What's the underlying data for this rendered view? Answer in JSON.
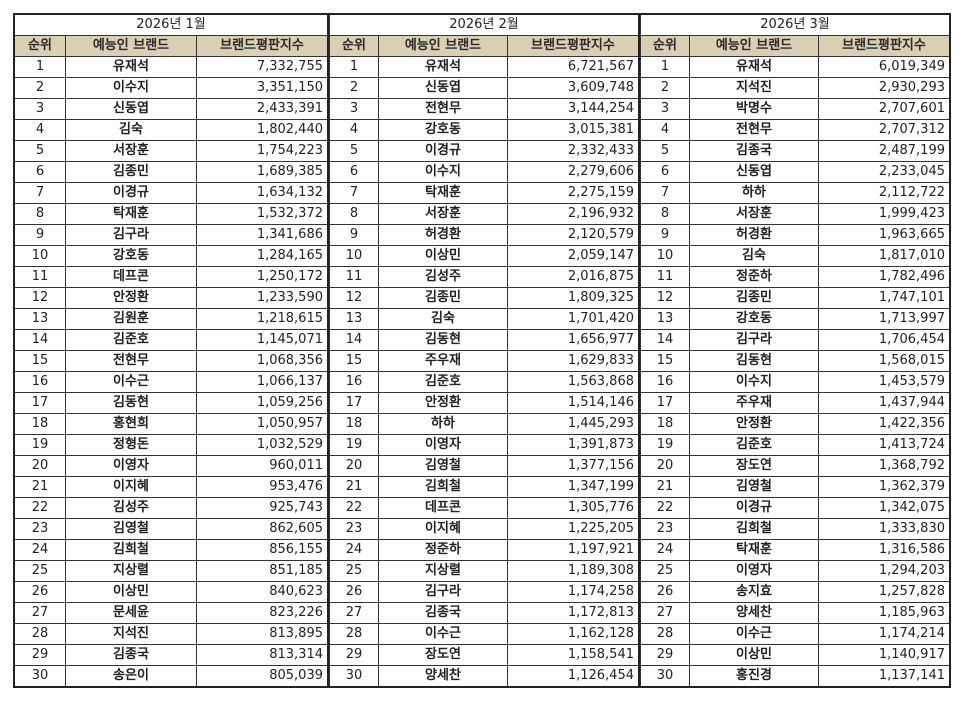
{
  "headers": {
    "rank": "순위",
    "brand": "예능인 브랜드",
    "score": "브랜드평판지수"
  },
  "months": [
    {
      "title": "2026년 1월",
      "rows": [
        {
          "rank": "1",
          "name": "유재석",
          "score": "7,332,755"
        },
        {
          "rank": "2",
          "name": "이수지",
          "score": "3,351,150"
        },
        {
          "rank": "3",
          "name": "신동엽",
          "score": "2,433,391"
        },
        {
          "rank": "4",
          "name": "김숙",
          "score": "1,802,440"
        },
        {
          "rank": "5",
          "name": "서장훈",
          "score": "1,754,223"
        },
        {
          "rank": "6",
          "name": "김종민",
          "score": "1,689,385"
        },
        {
          "rank": "7",
          "name": "이경규",
          "score": "1,634,132"
        },
        {
          "rank": "8",
          "name": "탁재훈",
          "score": "1,532,372"
        },
        {
          "rank": "9",
          "name": "김구라",
          "score": "1,341,686"
        },
        {
          "rank": "10",
          "name": "강호동",
          "score": "1,284,165"
        },
        {
          "rank": "11",
          "name": "데프콘",
          "score": "1,250,172"
        },
        {
          "rank": "12",
          "name": "안정환",
          "score": "1,233,590"
        },
        {
          "rank": "13",
          "name": "김원훈",
          "score": "1,218,615"
        },
        {
          "rank": "14",
          "name": "김준호",
          "score": "1,145,071"
        },
        {
          "rank": "15",
          "name": "전현무",
          "score": "1,068,356"
        },
        {
          "rank": "16",
          "name": "이수근",
          "score": "1,066,137"
        },
        {
          "rank": "17",
          "name": "김동현",
          "score": "1,059,256"
        },
        {
          "rank": "18",
          "name": "홍현희",
          "score": "1,050,957"
        },
        {
          "rank": "19",
          "name": "정형돈",
          "score": "1,032,529"
        },
        {
          "rank": "20",
          "name": "이영자",
          "score": "960,011"
        },
        {
          "rank": "21",
          "name": "이지혜",
          "score": "953,476"
        },
        {
          "rank": "22",
          "name": "김성주",
          "score": "925,743"
        },
        {
          "rank": "23",
          "name": "김영철",
          "score": "862,605"
        },
        {
          "rank": "24",
          "name": "김희철",
          "score": "856,155"
        },
        {
          "rank": "25",
          "name": "지상렬",
          "score": "851,185"
        },
        {
          "rank": "26",
          "name": "이상민",
          "score": "840,623"
        },
        {
          "rank": "27",
          "name": "문세윤",
          "score": "823,226"
        },
        {
          "rank": "28",
          "name": "지석진",
          "score": "813,895"
        },
        {
          "rank": "29",
          "name": "김종국",
          "score": "813,314"
        },
        {
          "rank": "30",
          "name": "송은이",
          "score": "805,039"
        }
      ]
    },
    {
      "title": "2026년 2월",
      "rows": [
        {
          "rank": "1",
          "name": "유재석",
          "score": "6,721,567"
        },
        {
          "rank": "2",
          "name": "신동엽",
          "score": "3,609,748"
        },
        {
          "rank": "3",
          "name": "전현무",
          "score": "3,144,254"
        },
        {
          "rank": "4",
          "name": "강호동",
          "score": "3,015,381"
        },
        {
          "rank": "5",
          "name": "이경규",
          "score": "2,332,433"
        },
        {
          "rank": "6",
          "name": "이수지",
          "score": "2,279,606"
        },
        {
          "rank": "7",
          "name": "탁재훈",
          "score": "2,275,159"
        },
        {
          "rank": "8",
          "name": "서장훈",
          "score": "2,196,932"
        },
        {
          "rank": "9",
          "name": "허경환",
          "score": "2,120,579"
        },
        {
          "rank": "10",
          "name": "이상민",
          "score": "2,059,147"
        },
        {
          "rank": "11",
          "name": "김성주",
          "score": "2,016,875"
        },
        {
          "rank": "12",
          "name": "김종민",
          "score": "1,809,325"
        },
        {
          "rank": "13",
          "name": "김숙",
          "score": "1,701,420"
        },
        {
          "rank": "14",
          "name": "김동현",
          "score": "1,656,977"
        },
        {
          "rank": "15",
          "name": "주우재",
          "score": "1,629,833"
        },
        {
          "rank": "16",
          "name": "김준호",
          "score": "1,563,868"
        },
        {
          "rank": "17",
          "name": "안정환",
          "score": "1,514,146"
        },
        {
          "rank": "18",
          "name": "하하",
          "score": "1,445,293"
        },
        {
          "rank": "19",
          "name": "이영자",
          "score": "1,391,873"
        },
        {
          "rank": "20",
          "name": "김영철",
          "score": "1,377,156"
        },
        {
          "rank": "21",
          "name": "김희철",
          "score": "1,347,199"
        },
        {
          "rank": "22",
          "name": "데프콘",
          "score": "1,305,776"
        },
        {
          "rank": "23",
          "name": "이지혜",
          "score": "1,225,205"
        },
        {
          "rank": "24",
          "name": "정준하",
          "score": "1,197,921"
        },
        {
          "rank": "25",
          "name": "지상렬",
          "score": "1,189,308"
        },
        {
          "rank": "26",
          "name": "김구라",
          "score": "1,174,258"
        },
        {
          "rank": "27",
          "name": "김종국",
          "score": "1,172,813"
        },
        {
          "rank": "28",
          "name": "이수근",
          "score": "1,162,128"
        },
        {
          "rank": "29",
          "name": "장도연",
          "score": "1,158,541"
        },
        {
          "rank": "30",
          "name": "양세찬",
          "score": "1,126,454"
        }
      ]
    },
    {
      "title": "2026년 3월",
      "rows": [
        {
          "rank": "1",
          "name": "유재석",
          "score": "6,019,349"
        },
        {
          "rank": "2",
          "name": "지석진",
          "score": "2,930,293"
        },
        {
          "rank": "3",
          "name": "박명수",
          "score": "2,707,601"
        },
        {
          "rank": "4",
          "name": "전현무",
          "score": "2,707,312"
        },
        {
          "rank": "5",
          "name": "김종국",
          "score": "2,487,199"
        },
        {
          "rank": "6",
          "name": "신동엽",
          "score": "2,233,045"
        },
        {
          "rank": "7",
          "name": "하하",
          "score": "2,112,722"
        },
        {
          "rank": "8",
          "name": "서장훈",
          "score": "1,999,423"
        },
        {
          "rank": "9",
          "name": "허경환",
          "score": "1,963,665"
        },
        {
          "rank": "10",
          "name": "김숙",
          "score": "1,817,010"
        },
        {
          "rank": "11",
          "name": "정준하",
          "score": "1,782,496"
        },
        {
          "rank": "12",
          "name": "김종민",
          "score": "1,747,101"
        },
        {
          "rank": "13",
          "name": "강호동",
          "score": "1,713,997"
        },
        {
          "rank": "14",
          "name": "김구라",
          "score": "1,706,454"
        },
        {
          "rank": "15",
          "name": "김동현",
          "score": "1,568,015"
        },
        {
          "rank": "16",
          "name": "이수지",
          "score": "1,453,579"
        },
        {
          "rank": "17",
          "name": "주우재",
          "score": "1,437,944"
        },
        {
          "rank": "18",
          "name": "안정환",
          "score": "1,422,356"
        },
        {
          "rank": "19",
          "name": "김준호",
          "score": "1,413,724"
        },
        {
          "rank": "20",
          "name": "장도연",
          "score": "1,368,792"
        },
        {
          "rank": "21",
          "name": "김영철",
          "score": "1,362,379"
        },
        {
          "rank": "22",
          "name": "이경규",
          "score": "1,342,075"
        },
        {
          "rank": "23",
          "name": "김희철",
          "score": "1,333,830"
        },
        {
          "rank": "24",
          "name": "탁재훈",
          "score": "1,316,586"
        },
        {
          "rank": "25",
          "name": "이영자",
          "score": "1,294,203"
        },
        {
          "rank": "26",
          "name": "송지효",
          "score": "1,257,828"
        },
        {
          "rank": "27",
          "name": "양세찬",
          "score": "1,185,963"
        },
        {
          "rank": "28",
          "name": "이수근",
          "score": "1,174,214"
        },
        {
          "rank": "29",
          "name": "이상민",
          "score": "1,140,917"
        },
        {
          "rank": "30",
          "name": "홍진경",
          "score": "1,137,141"
        }
      ]
    }
  ],
  "colors": {
    "header_bg": "#d9cfb2",
    "border": "#333333"
  }
}
